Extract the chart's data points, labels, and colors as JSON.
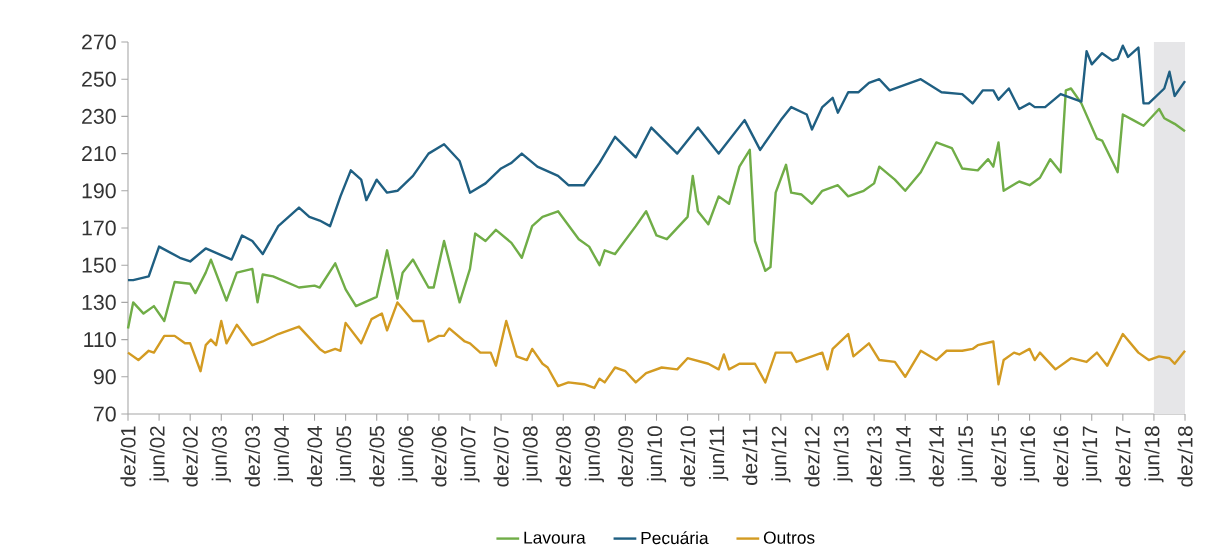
{
  "chart_data": {
    "type": "line",
    "xlim": [
      "2001-12",
      "2018-12"
    ],
    "ylim": [
      70,
      270
    ],
    "yticks": [
      70,
      90,
      110,
      130,
      150,
      170,
      190,
      210,
      230,
      250,
      270
    ],
    "xticks": [
      {
        "value": "2001-12",
        "label": "dez/01"
      },
      {
        "value": "2002-06",
        "label": "jun/02"
      },
      {
        "value": "2002-12",
        "label": "dez/02"
      },
      {
        "value": "2003-06",
        "label": "jun/03"
      },
      {
        "value": "2003-12",
        "label": "dez/03"
      },
      {
        "value": "2004-06",
        "label": "jun/04"
      },
      {
        "value": "2004-12",
        "label": "dez/04"
      },
      {
        "value": "2005-06",
        "label": "jun/05"
      },
      {
        "value": "2005-12",
        "label": "dez/05"
      },
      {
        "value": "2006-06",
        "label": "jun/06"
      },
      {
        "value": "2006-12",
        "label": "dez/06"
      },
      {
        "value": "2007-06",
        "label": "jun/07"
      },
      {
        "value": "2007-12",
        "label": "dez/07"
      },
      {
        "value": "2008-06",
        "label": "jun/08"
      },
      {
        "value": "2008-12",
        "label": "dez/08"
      },
      {
        "value": "2009-06",
        "label": "jun/09"
      },
      {
        "value": "2009-12",
        "label": "dez/09"
      },
      {
        "value": "2010-06",
        "label": "jun/10"
      },
      {
        "value": "2010-12",
        "label": "dez/10"
      },
      {
        "value": "2011-06",
        "label": "jun/11"
      },
      {
        "value": "2011-12",
        "label": "dez/11"
      },
      {
        "value": "2012-06",
        "label": "jun/12"
      },
      {
        "value": "2012-12",
        "label": "dez/12"
      },
      {
        "value": "2013-06",
        "label": "jun/13"
      },
      {
        "value": "2013-12",
        "label": "dez/13"
      },
      {
        "value": "2014-06",
        "label": "jun/14"
      },
      {
        "value": "2014-12",
        "label": "dez/14"
      },
      {
        "value": "2015-06",
        "label": "jun/15"
      },
      {
        "value": "2015-12",
        "label": "dez/15"
      },
      {
        "value": "2016-06",
        "label": "jun/16"
      },
      {
        "value": "2016-12",
        "label": "dez/16"
      },
      {
        "value": "2017-06",
        "label": "jun/17"
      },
      {
        "value": "2017-12",
        "label": "dez/17"
      },
      {
        "value": "2018-06",
        "label": "jun/18"
      },
      {
        "value": "2018-12",
        "label": "dez/18"
      }
    ],
    "bands": [
      {
        "axis": "x",
        "from": "2018-06",
        "to": "2018-12",
        "color": "#e6e6e8"
      }
    ],
    "legend": "bottom",
    "series": [
      {
        "name": "Lavoura",
        "color": "#70ad47",
        "x": [
          "2001-12",
          "2002-01",
          "2002-03",
          "2002-05",
          "2002-07",
          "2002-09",
          "2002-12",
          "2003-01",
          "2003-03",
          "2003-04",
          "2003-07",
          "2003-09",
          "2003-12",
          "2004-01",
          "2004-02",
          "2004-04",
          "2004-09",
          "2004-12",
          "2005-01",
          "2005-04",
          "2005-06",
          "2005-08",
          "2005-12",
          "2006-02",
          "2006-04",
          "2006-05",
          "2006-07",
          "2006-10",
          "2006-11",
          "2007-01",
          "2007-04",
          "2007-06",
          "2007-07",
          "2007-09",
          "2007-11",
          "2008-02",
          "2008-04",
          "2008-06",
          "2008-08",
          "2008-11",
          "2009-03",
          "2009-05",
          "2009-07",
          "2009-08",
          "2009-10",
          "2010-02",
          "2010-04",
          "2010-06",
          "2010-08",
          "2010-12",
          "2011-01",
          "2011-02",
          "2011-04",
          "2011-06",
          "2011-08",
          "2011-10",
          "2011-12",
          "2012-01",
          "2012-03",
          "2012-04",
          "2012-05",
          "2012-07",
          "2012-08",
          "2012-10",
          "2012-12",
          "2013-02",
          "2013-05",
          "2013-07",
          "2013-09",
          "2013-10",
          "2013-12",
          "2014-01",
          "2014-04",
          "2014-06",
          "2014-09",
          "2014-12",
          "2015-03",
          "2015-05",
          "2015-08",
          "2015-10",
          "2015-11",
          "2015-12",
          "2016-01",
          "2016-04",
          "2016-06",
          "2016-08",
          "2016-10",
          "2016-12",
          "2017-01",
          "2017-02",
          "2017-04",
          "2017-07",
          "2017-08",
          "2017-11",
          "2017-12",
          "2018-02",
          "2018-04",
          "2018-07",
          "2018-08",
          "2018-10",
          "2018-12"
        ],
        "values": [
          116,
          130,
          124,
          128,
          120,
          141,
          140,
          135,
          146,
          153,
          131,
          146,
          148,
          130,
          145,
          144,
          138,
          139,
          138,
          151,
          137,
          128,
          133,
          158,
          132,
          146,
          153,
          138,
          138,
          163,
          130,
          148,
          167,
          163,
          169,
          162,
          154,
          171,
          176,
          179,
          164,
          160,
          150,
          158,
          156,
          171,
          179,
          166,
          164,
          176,
          198,
          179,
          172,
          187,
          183,
          203,
          212,
          163,
          147,
          149,
          189,
          204,
          189,
          188,
          183,
          190,
          193,
          187,
          189,
          190,
          194,
          203,
          196,
          190,
          200,
          216,
          213,
          202,
          201,
          207,
          203,
          216,
          190,
          195,
          193,
          197,
          207,
          200,
          244,
          245,
          237,
          218,
          217,
          200,
          231,
          228,
          225,
          234,
          229,
          226,
          222
        ]
      },
      {
        "name": "Pecuária",
        "color": "#1f5f82",
        "x": [
          "2001-12",
          "2002-01",
          "2002-04",
          "2002-06",
          "2002-10",
          "2002-12",
          "2003-03",
          "2003-08",
          "2003-10",
          "2003-12",
          "2004-02",
          "2004-05",
          "2004-09",
          "2004-11",
          "2005-01",
          "2005-03",
          "2005-05",
          "2005-07",
          "2005-09",
          "2005-10",
          "2005-12",
          "2006-02",
          "2006-04",
          "2006-07",
          "2006-10",
          "2007-01",
          "2007-04",
          "2007-06",
          "2007-09",
          "2007-12",
          "2008-02",
          "2008-04",
          "2008-07",
          "2008-11",
          "2009-01",
          "2009-04",
          "2009-07",
          "2009-10",
          "2010-02",
          "2010-05",
          "2010-10",
          "2011-02",
          "2011-06",
          "2011-11",
          "2012-02",
          "2012-06",
          "2012-08",
          "2012-11",
          "2012-12",
          "2013-02",
          "2013-04",
          "2013-05",
          "2013-07",
          "2013-09",
          "2013-11",
          "2014-01",
          "2014-03",
          "2014-09",
          "2015-01",
          "2015-05",
          "2015-07",
          "2015-09",
          "2015-11",
          "2015-12",
          "2016-02",
          "2016-04",
          "2016-06",
          "2016-07",
          "2016-09",
          "2016-12",
          "2017-04",
          "2017-05",
          "2017-06",
          "2017-08",
          "2017-10",
          "2017-11",
          "2017-12",
          "2018-01",
          "2018-03",
          "2018-04",
          "2018-05",
          "2018-08",
          "2018-09",
          "2018-10",
          "2018-12"
        ],
        "values": [
          142,
          142,
          144,
          160,
          154,
          152,
          159,
          153,
          166,
          163,
          156,
          171,
          181,
          176,
          174,
          171,
          187,
          201,
          196,
          185,
          196,
          189,
          190,
          198,
          210,
          215,
          206,
          189,
          194,
          202,
          205,
          210,
          203,
          198,
          193,
          193,
          205,
          219,
          208,
          224,
          210,
          224,
          210,
          228,
          212,
          228,
          235,
          231,
          223,
          235,
          240,
          232,
          243,
          243,
          248,
          250,
          244,
          250,
          243,
          242,
          237,
          244,
          244,
          239,
          245,
          234,
          237,
          235,
          235,
          242,
          238,
          265,
          258,
          264,
          260,
          261,
          268,
          262,
          267,
          237,
          237,
          245,
          254,
          241,
          249
        ]
      },
      {
        "name": "Outros",
        "color": "#d39b22",
        "x": [
          "2001-12",
          "2002-02",
          "2002-04",
          "2002-05",
          "2002-07",
          "2002-09",
          "2002-11",
          "2002-12",
          "2003-02",
          "2003-03",
          "2003-04",
          "2003-05",
          "2003-06",
          "2003-07",
          "2003-09",
          "2003-12",
          "2004-02",
          "2004-05",
          "2004-09",
          "2005-01",
          "2005-02",
          "2005-04",
          "2005-05",
          "2005-06",
          "2005-09",
          "2005-11",
          "2006-01",
          "2006-02",
          "2006-04",
          "2006-07",
          "2006-09",
          "2006-10",
          "2006-12",
          "2007-01",
          "2007-02",
          "2007-05",
          "2007-06",
          "2007-08",
          "2007-10",
          "2007-11",
          "2008-01",
          "2008-03",
          "2008-05",
          "2008-06",
          "2008-08",
          "2008-09",
          "2008-11",
          "2009-01",
          "2009-04",
          "2009-06",
          "2009-07",
          "2009-08",
          "2009-10",
          "2009-12",
          "2010-02",
          "2010-04",
          "2010-07",
          "2010-10",
          "2010-12",
          "2011-04",
          "2011-06",
          "2011-07",
          "2011-08",
          "2011-10",
          "2012-01",
          "2012-03",
          "2012-05",
          "2012-08",
          "2012-09",
          "2012-12",
          "2013-02",
          "2013-03",
          "2013-04",
          "2013-07",
          "2013-08",
          "2013-11",
          "2014-01",
          "2014-04",
          "2014-06",
          "2014-09",
          "2014-12",
          "2015-02",
          "2015-05",
          "2015-07",
          "2015-08",
          "2015-11",
          "2015-12",
          "2016-01",
          "2016-03",
          "2016-04",
          "2016-06",
          "2016-07",
          "2016-08",
          "2016-11",
          "2017-02",
          "2017-05",
          "2017-07",
          "2017-09",
          "2017-12",
          "2018-03",
          "2018-05",
          "2018-07",
          "2018-09",
          "2018-10",
          "2018-12"
        ],
        "values": [
          103,
          99,
          104,
          103,
          112,
          112,
          108,
          108,
          93,
          107,
          110,
          107,
          120,
          108,
          118,
          107,
          109,
          113,
          117,
          105,
          103,
          105,
          104,
          119,
          108,
          121,
          124,
          115,
          130,
          120,
          120,
          109,
          112,
          112,
          116,
          109,
          108,
          103,
          103,
          96,
          120,
          101,
          99,
          105,
          97,
          95,
          85,
          87,
          86,
          84,
          89,
          87,
          95,
          93,
          87,
          92,
          95,
          94,
          100,
          97,
          94,
          102,
          94,
          97,
          97,
          87,
          103,
          103,
          98,
          101,
          103,
          94,
          105,
          113,
          101,
          108,
          99,
          98,
          90,
          104,
          99,
          104,
          104,
          105,
          107,
          109,
          86,
          99,
          103,
          102,
          105,
          99,
          103,
          94,
          100,
          98,
          103,
          96,
          113,
          103,
          99,
          101,
          100,
          97,
          104
        ]
      }
    ]
  }
}
